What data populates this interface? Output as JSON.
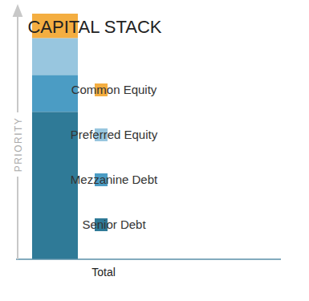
{
  "chart_data": {
    "type": "bar",
    "title": "CAPITAL STACK",
    "y_label": "PRIORITY",
    "categories": [
      "Total"
    ],
    "series": [
      {
        "name": "Common Equity",
        "color": "#f4ae41",
        "values": [
          10
        ]
      },
      {
        "name": "Preferred Equity",
        "color": "#98c6df",
        "values": [
          15
        ]
      },
      {
        "name": "Mezzanine Debt",
        "color": "#4b9cc4",
        "values": [
          15
        ]
      },
      {
        "name": "Senior Debt",
        "color": "#2f7a97",
        "values": [
          60
        ]
      }
    ],
    "stacked": true,
    "legend": "right",
    "ylim": [
      0,
      100
    ],
    "tick_labels": "x"
  }
}
